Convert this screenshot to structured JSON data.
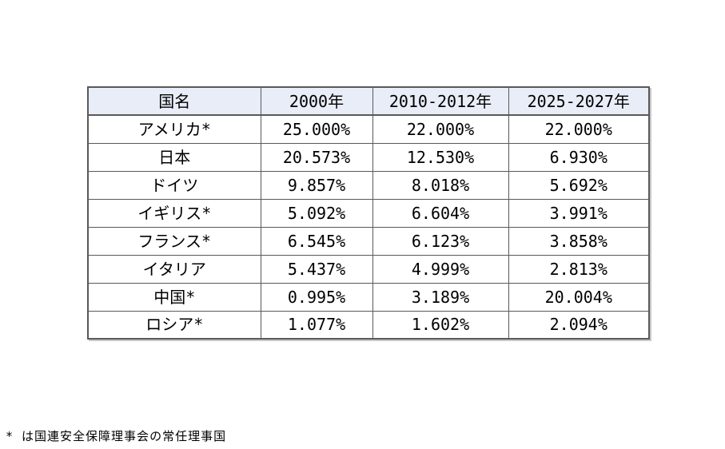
{
  "chart_data": {
    "type": "table",
    "title": "",
    "columns": [
      "国名",
      "2000年",
      "2010-2012年",
      "2025-2027年"
    ],
    "rows": [
      {
        "country": "アメリカ*",
        "values": [
          "25.000%",
          "22.000%",
          "22.000%"
        ]
      },
      {
        "country": "日本",
        "values": [
          "20.573%",
          "12.530%",
          "6.930%"
        ]
      },
      {
        "country": "ドイツ",
        "values": [
          "9.857%",
          "8.018%",
          "5.692%"
        ]
      },
      {
        "country": "イギリス*",
        "values": [
          "5.092%",
          "6.604%",
          "3.991%"
        ]
      },
      {
        "country": "フランス*",
        "values": [
          "6.545%",
          "6.123%",
          "3.858%"
        ]
      },
      {
        "country": "イタリア",
        "values": [
          "5.437%",
          "4.999%",
          "2.813%"
        ]
      },
      {
        "country": "中国*",
        "values": [
          "0.995%",
          "3.189%",
          "20.004%"
        ]
      },
      {
        "country": "ロシア*",
        "values": [
          "1.077%",
          "1.602%",
          "2.094%"
        ]
      }
    ],
    "footnote": "* は国連安全保障理事会の常任理事国",
    "layout": {
      "legend": "none",
      "grid": "full-borders",
      "header_background": "#e8edf7",
      "border_color": "#595959",
      "text_color": "#000000",
      "page_background": "#ffffff"
    }
  }
}
